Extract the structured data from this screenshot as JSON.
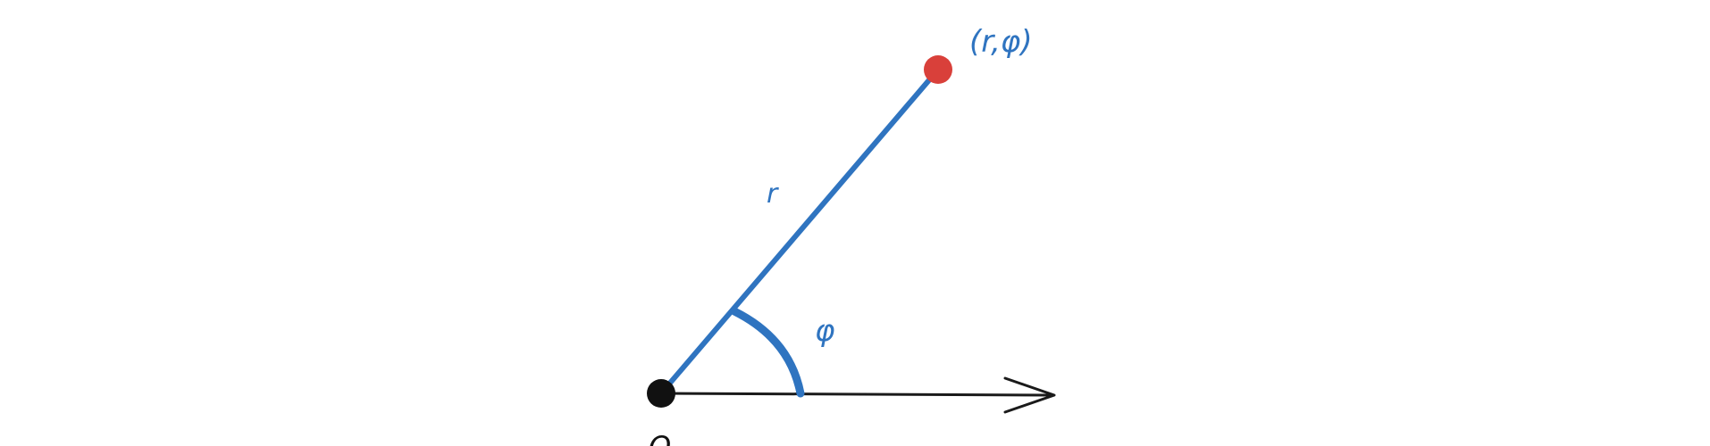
{
  "diagram": {
    "labels": {
      "radius": "r",
      "angle": "φ",
      "point": "(r,φ)",
      "origin": "O"
    },
    "colors": {
      "ray": "#2f74c0",
      "point": "#d9403a",
      "origin": "#111111",
      "axis": "#1a1a1a",
      "label": "#2f74c0",
      "background": "#ffffff"
    }
  }
}
